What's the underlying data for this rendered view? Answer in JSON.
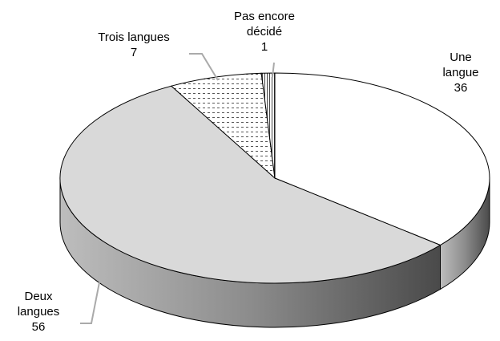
{
  "chart_data": {
    "type": "pie",
    "three_d": true,
    "categories": [
      "Une langue",
      "Deux langues",
      "Trois langues",
      "Pas encore décidé"
    ],
    "values": [
      36,
      56,
      7,
      1
    ],
    "colors": [
      "#ffffff",
      "#d9d9d9",
      "#ffffff",
      "#ffffff"
    ]
  }
}
